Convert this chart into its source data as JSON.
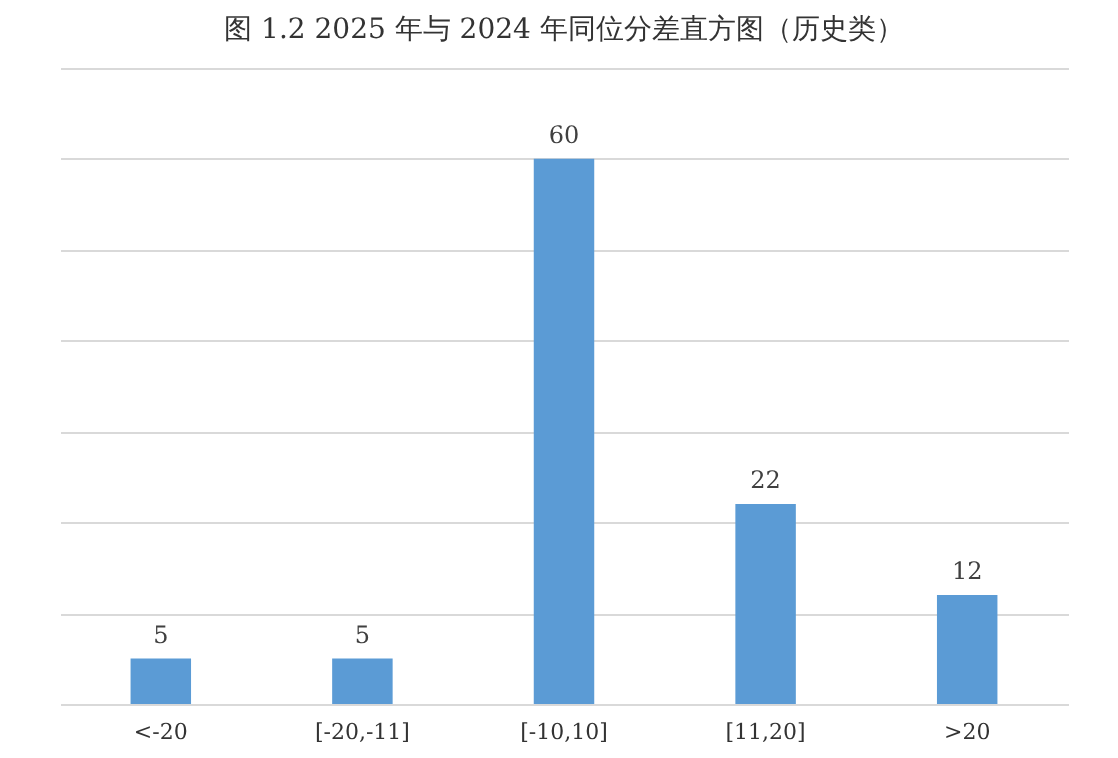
{
  "chart_data": {
    "type": "bar",
    "title": "图 1.2 2025 年与 2024 年同位分差直方图（历史类）",
    "categories": [
      "<-20",
      "[-20,-11]",
      "[-10,10]",
      "[11,20]",
      ">20"
    ],
    "values": [
      5,
      5,
      60,
      22,
      12
    ],
    "color": "#5b9bd5",
    "ylim": [
      0,
      70
    ],
    "yticks": [
      {
        "value": 0,
        "label": null
      },
      {
        "value": 10,
        "label": null
      },
      {
        "value": 20,
        "label": null
      },
      {
        "value": 30,
        "label": null
      },
      {
        "value": 40,
        "label": null
      },
      {
        "value": 50,
        "label": null
      },
      {
        "value": 60,
        "label": null
      },
      {
        "value": 70,
        "label": null
      }
    ],
    "grid": "y",
    "tick_labels": "x",
    "data_labels": true
  }
}
